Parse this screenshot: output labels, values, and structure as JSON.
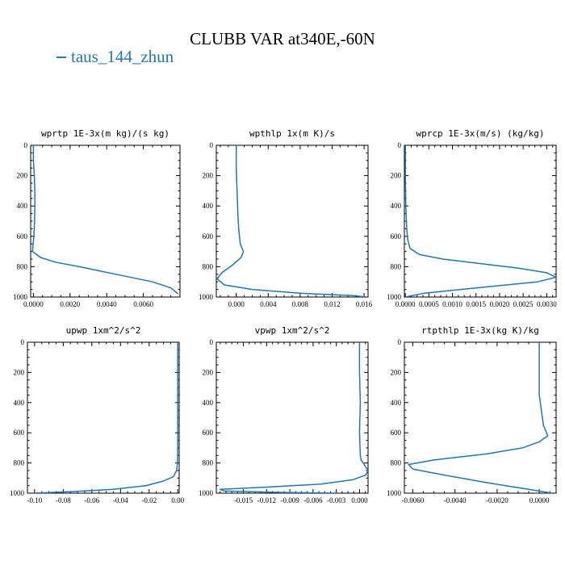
{
  "title": "CLUBB VAR at340E,-60N",
  "legend": {
    "label": "taus_144_zhun",
    "color": "#1f77b4"
  },
  "chart_data": [
    {
      "type": "line",
      "title": "wprtp  1E-3x(m kg)/(s kg)",
      "xlim": [
        -0.00015,
        0.008
      ],
      "ylim": [
        1000,
        0
      ],
      "y_inverted": true,
      "x_ticks": [
        0,
        0.002,
        0.004,
        0.006
      ],
      "x_tick_labels": [
        "0.0000",
        "0.0020",
        "0.0040",
        "0.0060"
      ],
      "y_ticks": [
        0,
        200,
        400,
        600,
        800,
        1000
      ],
      "y_tick_labels": [
        "0",
        "200",
        "400",
        "600",
        "800",
        "1000"
      ],
      "series": [
        {
          "color": "#1f77b4",
          "x": [
            0.0,
            0.0,
            5e-05,
            8e-05,
            8e-05,
            6e-05,
            2e-05,
            -5e-05,
            0.0004,
            0.0012,
            0.0025,
            0.0045,
            0.0065,
            0.0075,
            0.0079
          ],
          "y": [
            0,
            100,
            200,
            300,
            400,
            500,
            600,
            700,
            740,
            770,
            800,
            850,
            900,
            940,
            980
          ]
        }
      ]
    },
    {
      "type": "line",
      "title": "wpthlp  1x(m K)/s",
      "xlim": [
        -0.0025,
        0.0165
      ],
      "ylim": [
        1000,
        0
      ],
      "y_inverted": true,
      "x_ticks": [
        0,
        0.004,
        0.008,
        0.012,
        0.016
      ],
      "x_tick_labels": [
        "0.000",
        "0.004",
        "0.008",
        "0.012",
        "0.016"
      ],
      "y_ticks": [
        0,
        200,
        400,
        600,
        800,
        1000
      ],
      "y_tick_labels": [
        "0",
        "200",
        "400",
        "600",
        "800",
        "1000"
      ],
      "series": [
        {
          "color": "#1f77b4",
          "x": [
            0.0,
            0.0,
            0.0001,
            0.0002,
            0.0003,
            0.0005,
            0.0009,
            0.0006,
            -0.0005,
            -0.0018,
            -0.0024,
            -0.0015,
            0.002,
            0.008,
            0.0145,
            0.0163
          ],
          "y": [
            0,
            150,
            300,
            450,
            550,
            650,
            700,
            740,
            790,
            840,
            880,
            920,
            950,
            975,
            990,
            1000
          ]
        }
      ]
    },
    {
      "type": "line",
      "title": "wprcp  1E-3x(m/s) (kg/kg)",
      "xlim": [
        -2e-05,
        0.0032
      ],
      "ylim": [
        1000,
        0
      ],
      "y_inverted": true,
      "x_ticks": [
        0,
        0.0005,
        0.001,
        0.0015,
        0.002,
        0.0025,
        0.003
      ],
      "x_tick_labels": [
        "0.0000",
        "0.0005",
        "0.0010",
        "0.0015",
        "0.0020",
        "0.0025",
        "0.0030"
      ],
      "y_ticks": [
        0,
        200,
        400,
        600,
        800,
        1000
      ],
      "y_tick_labels": [
        "0",
        "200",
        "400",
        "600",
        "800",
        "1000"
      ],
      "series": [
        {
          "color": "#1f77b4",
          "x": [
            0.0,
            0.0,
            1e-05,
            3e-05,
            5e-05,
            0.0001,
            0.0003,
            0.0008,
            0.0016,
            0.0024,
            0.003,
            0.0032,
            0.0028,
            0.0015,
            0.0004,
            0.0
          ],
          "y": [
            0,
            200,
            400,
            550,
            620,
            680,
            720,
            750,
            780,
            810,
            840,
            870,
            900,
            940,
            975,
            1000
          ]
        }
      ]
    },
    {
      "type": "line",
      "title": "upwp  1xm^2/s^2",
      "xlim": [
        -0.105,
        0.001
      ],
      "ylim": [
        1000,
        0
      ],
      "y_inverted": true,
      "x_ticks": [
        -0.1,
        -0.08,
        -0.06,
        -0.04,
        -0.02,
        0.0
      ],
      "x_tick_labels": [
        "-0.10",
        "-0.08",
        "-0.06",
        "-0.04",
        "-0.02",
        "0.00"
      ],
      "y_ticks": [
        0,
        200,
        400,
        600,
        800,
        1000
      ],
      "y_tick_labels": [
        "0",
        "200",
        "400",
        "600",
        "800",
        "1000"
      ],
      "series": [
        {
          "color": "#1f77b4",
          "x": [
            0.0,
            0.0,
            0.0,
            -0.0002,
            -0.0008,
            -0.003,
            -0.01,
            -0.022,
            -0.045,
            -0.075,
            -0.1
          ],
          "y": [
            0,
            400,
            700,
            800,
            850,
            890,
            920,
            950,
            975,
            990,
            1000
          ]
        }
      ]
    },
    {
      "type": "line",
      "title": "vpwp  1xm^2/s^2",
      "xlim": [
        -0.0185,
        0.0011
      ],
      "ylim": [
        1000,
        0
      ],
      "y_inverted": true,
      "x_ticks": [
        -0.015,
        -0.012,
        -0.009,
        -0.006,
        -0.003,
        0.0
      ],
      "x_tick_labels": [
        "-0.015",
        "-0.012",
        "-0.009",
        "-0.006",
        "-0.003",
        "0.000"
      ],
      "y_ticks": [
        0,
        200,
        400,
        600,
        800,
        1000
      ],
      "y_tick_labels": [
        "0",
        "200",
        "400",
        "600",
        "800",
        "1000"
      ],
      "series": [
        {
          "color": "#1f77b4",
          "x": [
            0.0,
            0.0,
            0.0001,
            0.0,
            0.0001,
            0.0002,
            0.0006,
            0.0011,
            0.0008,
            -0.0008,
            -0.005,
            -0.012,
            -0.018,
            -0.0175,
            -0.01,
            -0.003
          ],
          "y": [
            0,
            200,
            400,
            600,
            750,
            780,
            810,
            850,
            880,
            910,
            940,
            960,
            975,
            985,
            995,
            1000
          ]
        }
      ]
    },
    {
      "type": "line",
      "title": "rtpthlp  1E-3x(kg K)/kg",
      "xlim": [
        -0.0064,
        0.0008
      ],
      "ylim": [
        1000,
        0
      ],
      "y_inverted": true,
      "x_ticks": [
        -0.006,
        -0.004,
        -0.002,
        0.0
      ],
      "x_tick_labels": [
        "-0.0060",
        "-0.0040",
        "-0.0020",
        "0.0000"
      ],
      "y_ticks": [
        0,
        200,
        400,
        600,
        800,
        1000
      ],
      "y_tick_labels": [
        "0",
        "200",
        "400",
        "600",
        "800",
        "1000"
      ],
      "series": [
        {
          "color": "#1f77b4",
          "x": [
            0.0,
            0.0,
            0.0,
            0.0001,
            0.0002,
            0.0004,
            0.0,
            -0.0008,
            -0.0025,
            -0.005,
            -0.0062,
            -0.006,
            -0.0045,
            -0.0025,
            -0.0005,
            0.0006
          ],
          "y": [
            0,
            200,
            350,
            450,
            550,
            620,
            660,
            700,
            740,
            780,
            810,
            840,
            880,
            930,
            975,
            1000
          ]
        }
      ]
    }
  ]
}
